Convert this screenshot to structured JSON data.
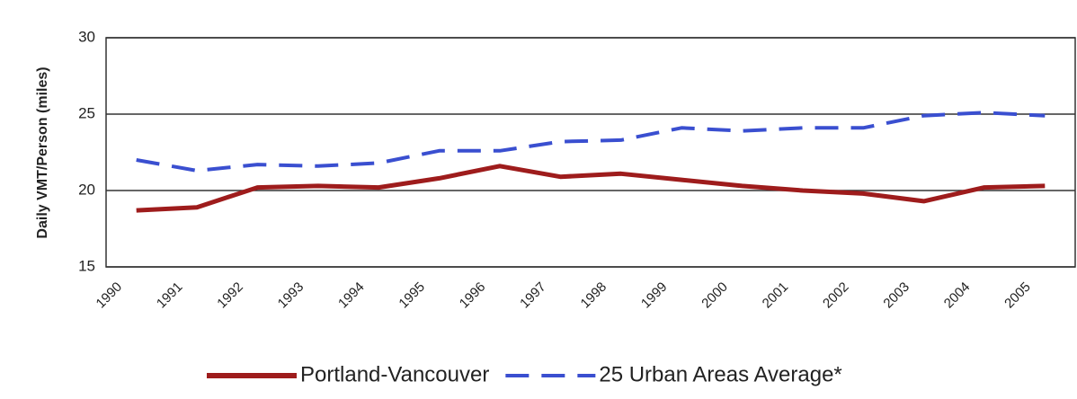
{
  "chart_data": {
    "type": "line",
    "y_label": "Daily VMT/Person (miles)",
    "categories": [
      "1990",
      "1991",
      "1992",
      "1993",
      "1994",
      "1995",
      "1996",
      "1997",
      "1998",
      "1999",
      "2000",
      "2001",
      "2002",
      "2003",
      "2004",
      "2005"
    ],
    "series": [
      {
        "name": "Portland-Vancouver",
        "color": "#9e1c1c",
        "dash": "solid",
        "values": [
          18.7,
          18.9,
          20.2,
          20.3,
          20.2,
          20.8,
          21.6,
          20.9,
          21.1,
          20.7,
          20.3,
          20.0,
          19.8,
          19.3,
          20.2,
          20.3
        ]
      },
      {
        "name": "25 Urban Areas Average*",
        "color": "#3a4fd0",
        "dash": "dashed",
        "values": [
          22.0,
          21.3,
          21.7,
          21.6,
          21.8,
          22.6,
          22.6,
          23.2,
          23.3,
          24.1,
          23.9,
          24.1,
          24.1,
          24.9,
          25.1,
          24.9
        ]
      }
    ],
    "ylim": [
      15,
      30
    ],
    "yticks": [
      15,
      20,
      25,
      30
    ],
    "grid": true,
    "legend": "bottom"
  }
}
